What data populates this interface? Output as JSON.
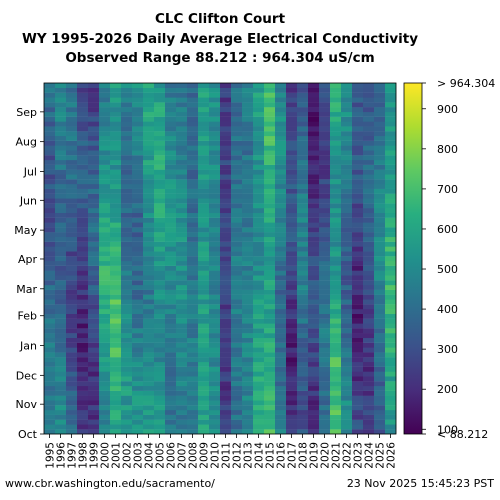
{
  "chart_data": {
    "type": "heatmap",
    "title": "CLC Clifton Court",
    "subtitle": "WY 1995-2026 Daily Average Electrical Conductivity",
    "subtitle2": "Observed Range 88.212 : 964.304 uS/cm",
    "xlabel": "",
    "ylabel": "",
    "x": [
      "1995",
      "1996",
      "1997",
      "1998",
      "1999",
      "2000",
      "2001",
      "2002",
      "2003",
      "2004",
      "2005",
      "2006",
      "2007",
      "2008",
      "2009",
      "2010",
      "2011",
      "2012",
      "2013",
      "2014",
      "2015",
      "2016",
      "2017",
      "2018",
      "2019",
      "2020",
      "2021",
      "2022",
      "2023",
      "2024",
      "2025",
      "2026"
    ],
    "y_ticks": [
      "Oct",
      "Nov",
      "Dec",
      "Jan",
      "Feb",
      "Mar",
      "Apr",
      "May",
      "Jun",
      "Jul",
      "Aug",
      "Sep"
    ],
    "colorbar": {
      "ticks": [
        100,
        200,
        300,
        400,
        500,
        600,
        700,
        800,
        900
      ],
      "top_label": "> 964.304",
      "bottom_label": "< 88.212",
      "min": 88.212,
      "max": 964.304,
      "colormap": "viridis"
    },
    "year_mean_uScm": [
      380,
      420,
      350,
      260,
      300,
      560,
      620,
      470,
      450,
      520,
      560,
      480,
      490,
      420,
      560,
      500,
      250,
      430,
      460,
      560,
      640,
      440,
      250,
      390,
      230,
      350,
      610,
      430,
      260,
      310,
      420,
      600
    ],
    "missing_data_present": true,
    "grid": false
  },
  "footer": {
    "source": "www.cbr.washington.edu/sacramento/",
    "timestamp": "23 Nov 2025 15:45:23 PST"
  }
}
